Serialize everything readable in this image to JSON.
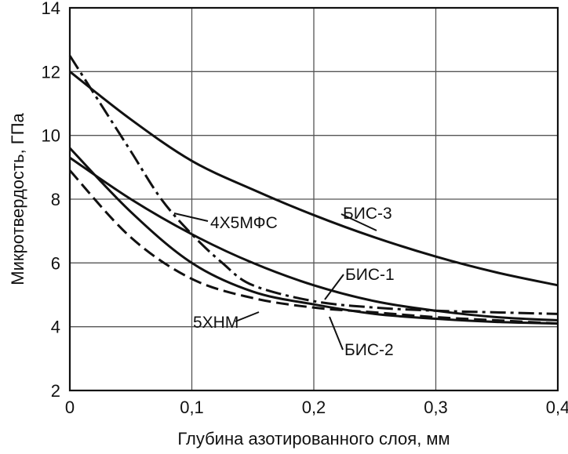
{
  "chart_data": {
    "type": "line",
    "title": "",
    "xlabel": "Глубина азотированного слоя, мм",
    "ylabel": "Микротвердость, ГПа",
    "xlim": [
      0,
      0.4
    ],
    "ylim": [
      2,
      14
    ],
    "grid": true,
    "x_ticks": [
      "0",
      "0,1",
      "0,2",
      "0,3",
      "0,4"
    ],
    "y_ticks": [
      "2",
      "4",
      "6",
      "8",
      "10",
      "12",
      "14"
    ],
    "series": [
      {
        "name": "БИС-3",
        "style": "solid",
        "x": [
          0,
          0.05,
          0.1,
          0.15,
          0.2,
          0.25,
          0.3,
          0.35,
          0.4
        ],
        "y": [
          12.0,
          10.5,
          9.2,
          8.3,
          7.5,
          6.8,
          6.2,
          5.7,
          5.3
        ]
      },
      {
        "name": "4Х5МФС",
        "style": "dash-dot",
        "x": [
          0,
          0.025,
          0.05,
          0.075,
          0.1,
          0.125,
          0.15,
          0.2,
          0.25,
          0.3,
          0.35,
          0.4
        ],
        "y": [
          12.5,
          11.0,
          9.5,
          8.0,
          6.9,
          6.0,
          5.3,
          4.8,
          4.6,
          4.5,
          4.45,
          4.4
        ]
      },
      {
        "name": "БИС-1",
        "style": "solid",
        "x": [
          0,
          0.05,
          0.1,
          0.15,
          0.2,
          0.25,
          0.3,
          0.35,
          0.4
        ],
        "y": [
          9.3,
          8.0,
          6.9,
          6.0,
          5.3,
          4.8,
          4.5,
          4.3,
          4.2
        ]
      },
      {
        "name": "БИС-2",
        "style": "solid",
        "x": [
          0,
          0.05,
          0.1,
          0.15,
          0.2,
          0.25,
          0.3,
          0.35,
          0.4
        ],
        "y": [
          9.6,
          7.6,
          6.0,
          5.1,
          4.7,
          4.4,
          4.25,
          4.15,
          4.1
        ]
      },
      {
        "name": "5ХНМ",
        "style": "dashed",
        "x": [
          0,
          0.05,
          0.1,
          0.15,
          0.2,
          0.25,
          0.3,
          0.35,
          0.4
        ],
        "y": [
          8.9,
          6.8,
          5.5,
          4.9,
          4.6,
          4.45,
          4.3,
          4.2,
          4.1
        ]
      }
    ],
    "annotations": [
      "4Х5МФС",
      "БИС-3",
      "БИС-1",
      "5ХНМ",
      "БИС-2"
    ]
  }
}
